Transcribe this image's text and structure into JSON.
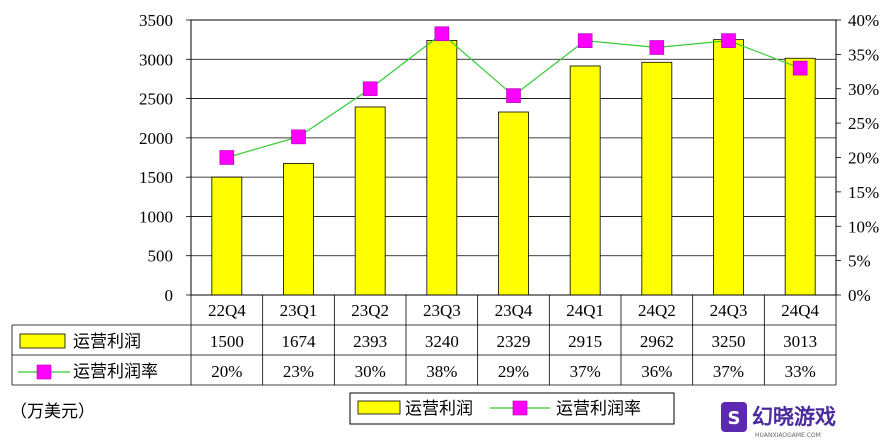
{
  "chart_data": {
    "type": "bar",
    "categories": [
      "22Q4",
      "23Q1",
      "23Q2",
      "23Q3",
      "23Q4",
      "24Q1",
      "24Q2",
      "24Q3",
      "24Q4"
    ],
    "series": [
      {
        "name": "运营利润",
        "kind": "bar",
        "axis": "left",
        "color": "#FFFF00",
        "values": [
          1500,
          1674,
          2393,
          3240,
          2329,
          2915,
          2962,
          3250,
          3013
        ]
      },
      {
        "name": "运营利润率",
        "kind": "line",
        "axis": "right",
        "color": "#33CC33",
        "marker_color": "#FF00FF",
        "values": [
          20,
          23,
          30,
          38,
          29,
          37,
          36,
          37,
          33
        ]
      }
    ],
    "table_rows": [
      {
        "label": "运营利润",
        "cells": [
          "1500",
          "1674",
          "2393",
          "3240",
          "2329",
          "2915",
          "2962",
          "3250",
          "3013"
        ]
      },
      {
        "label": "运营利润率",
        "cells": [
          "20%",
          "23%",
          "30%",
          "38%",
          "29%",
          "37%",
          "36%",
          "37%",
          "33%"
        ]
      }
    ],
    "y_left": {
      "range": [
        0,
        3500
      ],
      "ticks": [
        "0",
        "500",
        "1000",
        "1500",
        "2000",
        "2500",
        "3000",
        "3500"
      ]
    },
    "y_right": {
      "range": [
        0,
        40
      ],
      "ticks": [
        "0%",
        "5%",
        "10%",
        "15%",
        "20%",
        "25%",
        "30%",
        "35%",
        "40%"
      ]
    },
    "unit_label": "（万美元）",
    "legend": {
      "placement": "bottom-center",
      "items": [
        "运营利润",
        "运营利润率"
      ]
    },
    "grid": "horizontal",
    "watermark": {
      "text": "幻晓游戏",
      "subtext": "HUANXIAOGAME.COM"
    }
  }
}
